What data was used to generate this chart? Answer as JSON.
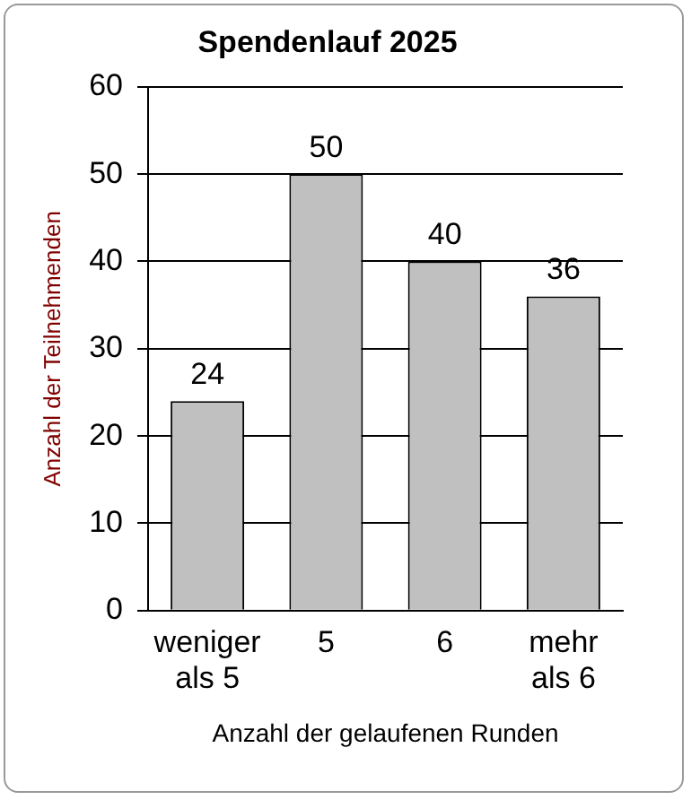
{
  "chart_data": {
    "type": "bar",
    "title": "Spendenlauf 2025",
    "xlabel": "Anzahl der gelaufenen Runden",
    "ylabel": "Anzahl der Teilnehmenden",
    "categories": [
      "weniger als 5",
      "5",
      "6",
      "mehr als 6"
    ],
    "values": [
      24,
      50,
      40,
      36
    ],
    "color": "#c0c0c0",
    "ylim": [
      0,
      60
    ],
    "yticks": [
      0,
      10,
      20,
      30,
      40,
      50,
      60
    ],
    "grid": "y",
    "data_labels": true
  }
}
